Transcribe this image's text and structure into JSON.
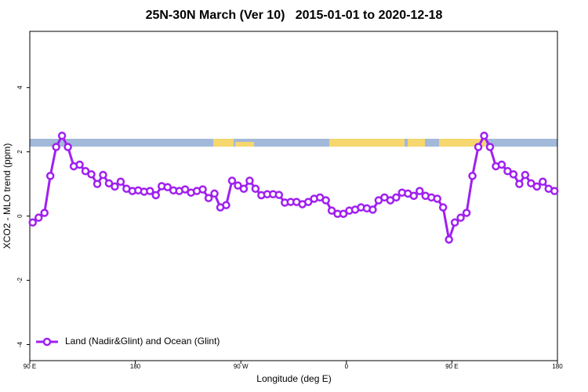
{
  "chart_data": {
    "type": "line",
    "title": "25N-30N March (Ver 10)   2015-01-01 to 2020-12-18",
    "x_label": "Longitude (deg E)",
    "y_label": "XCO2 - MLO trend (ppm)",
    "xlim": [
      90,
      540
    ],
    "ylim": [
      -4.5,
      5.75
    ],
    "xticks": [
      {
        "value": 90,
        "label": "90 E"
      },
      {
        "value": 180,
        "label": "180"
      },
      {
        "value": 270,
        "label": "90 W"
      },
      {
        "value": 360,
        "label": "0"
      },
      {
        "value": 450,
        "label": "90 E"
      },
      {
        "value": 540,
        "label": "180"
      }
    ],
    "yticks": [
      -4,
      -2,
      0,
      2,
      4
    ],
    "legend": "bottom left",
    "series": [
      {
        "name": "Land (Nadir&Glint) and Ocean (Glint)",
        "color": "#a020f0",
        "x": [
          92.5,
          97.5,
          102.5,
          107.5,
          112.5,
          117.5,
          122.5,
          127.5,
          132.5,
          137.5,
          142.5,
          147.5,
          152.5,
          157.5,
          162.5,
          167.5,
          172.5,
          177.5,
          182.5,
          187.5,
          192.5,
          197.5,
          202.5,
          207.5,
          212.5,
          217.5,
          222.5,
          227.5,
          232.5,
          237.5,
          242.5,
          247.5,
          252.5,
          257.5,
          262.5,
          267.5,
          272.5,
          277.5,
          282.5,
          287.5,
          292.5,
          297.5,
          302.5,
          307.5,
          312.5,
          317.5,
          322.5,
          327.5,
          332.5,
          337.5,
          342.5,
          347.5,
          352.5,
          357.5,
          362.5,
          367.5,
          372.5,
          377.5,
          382.5,
          387.5,
          392.5,
          397.5,
          402.5,
          407.5,
          412.5,
          417.5,
          422.5,
          427.5,
          432.5,
          437.5,
          442.5,
          447.5,
          452.5,
          457.5,
          462.5,
          467.5,
          472.5,
          477.5,
          482.5,
          487.5,
          492.5,
          497.5,
          502.5,
          507.5,
          512.5,
          517.5,
          522.5,
          527.5,
          532.5,
          537.5
        ],
        "values": [
          -0.2,
          -0.05,
          0.1,
          1.25,
          2.15,
          2.5,
          2.15,
          1.55,
          1.6,
          1.4,
          1.3,
          1.0,
          1.28,
          1.02,
          0.92,
          1.07,
          0.85,
          0.78,
          0.8,
          0.76,
          0.78,
          0.65,
          0.93,
          0.9,
          0.8,
          0.78,
          0.83,
          0.73,
          0.78,
          0.83,
          0.56,
          0.7,
          0.27,
          0.34,
          1.1,
          0.95,
          0.85,
          1.1,
          0.85,
          0.65,
          0.68,
          0.68,
          0.66,
          0.42,
          0.44,
          0.44,
          0.37,
          0.44,
          0.54,
          0.58,
          0.49,
          0.17,
          0.07,
          0.07,
          0.17,
          0.2,
          0.27,
          0.24,
          0.2,
          0.49,
          0.58,
          0.49,
          0.58,
          0.73,
          0.7,
          0.63,
          0.78,
          0.63,
          0.58,
          0.54,
          0.27,
          -0.73,
          -0.2,
          -0.05,
          0.1,
          1.25,
          2.15,
          2.5,
          2.15,
          1.55,
          1.6,
          1.4,
          1.3,
          1.0,
          1.28,
          1.02,
          0.92,
          1.07,
          0.85,
          0.78
        ]
      }
    ]
  }
}
